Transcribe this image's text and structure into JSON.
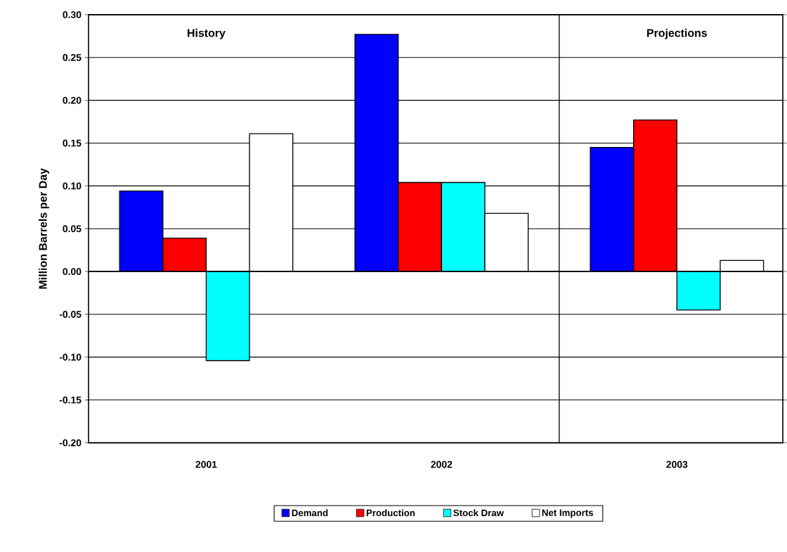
{
  "chart_data": {
    "type": "bar",
    "ylabel": "Million Barrels per Day",
    "categories": [
      "2001",
      "2002",
      "2003"
    ],
    "series": [
      {
        "name": "Demand",
        "color": "#0000ff",
        "values": [
          0.094,
          0.277,
          0.145
        ]
      },
      {
        "name": "Production",
        "color": "#ff0000",
        "values": [
          0.039,
          0.104,
          0.177
        ]
      },
      {
        "name": "Stock Draw",
        "color": "#00ffff",
        "values": [
          -0.104,
          0.104,
          -0.045
        ]
      },
      {
        "name": "Net Imports",
        "color": "#ffffff",
        "values": [
          0.161,
          0.068,
          0.013
        ]
      }
    ],
    "ylim": [
      -0.2,
      0.3
    ],
    "yticks": [
      {
        "value": -0.2,
        "label": "-0.20"
      },
      {
        "value": -0.15,
        "label": "-0.15"
      },
      {
        "value": -0.1,
        "label": "-0.10"
      },
      {
        "value": -0.05,
        "label": "-0.05"
      },
      {
        "value": 0,
        "label": "0.00"
      },
      {
        "value": 0.05,
        "label": "0.05"
      },
      {
        "value": 0.1,
        "label": "0.10"
      },
      {
        "value": 0.15,
        "label": "0.15"
      },
      {
        "value": 0.2,
        "label": "0.20"
      },
      {
        "value": 0.25,
        "label": "0.25"
      },
      {
        "value": 0.3,
        "label": "0.30"
      }
    ],
    "annotations": [
      "History",
      "Projections"
    ],
    "grid": "y",
    "legend": "bottom"
  }
}
